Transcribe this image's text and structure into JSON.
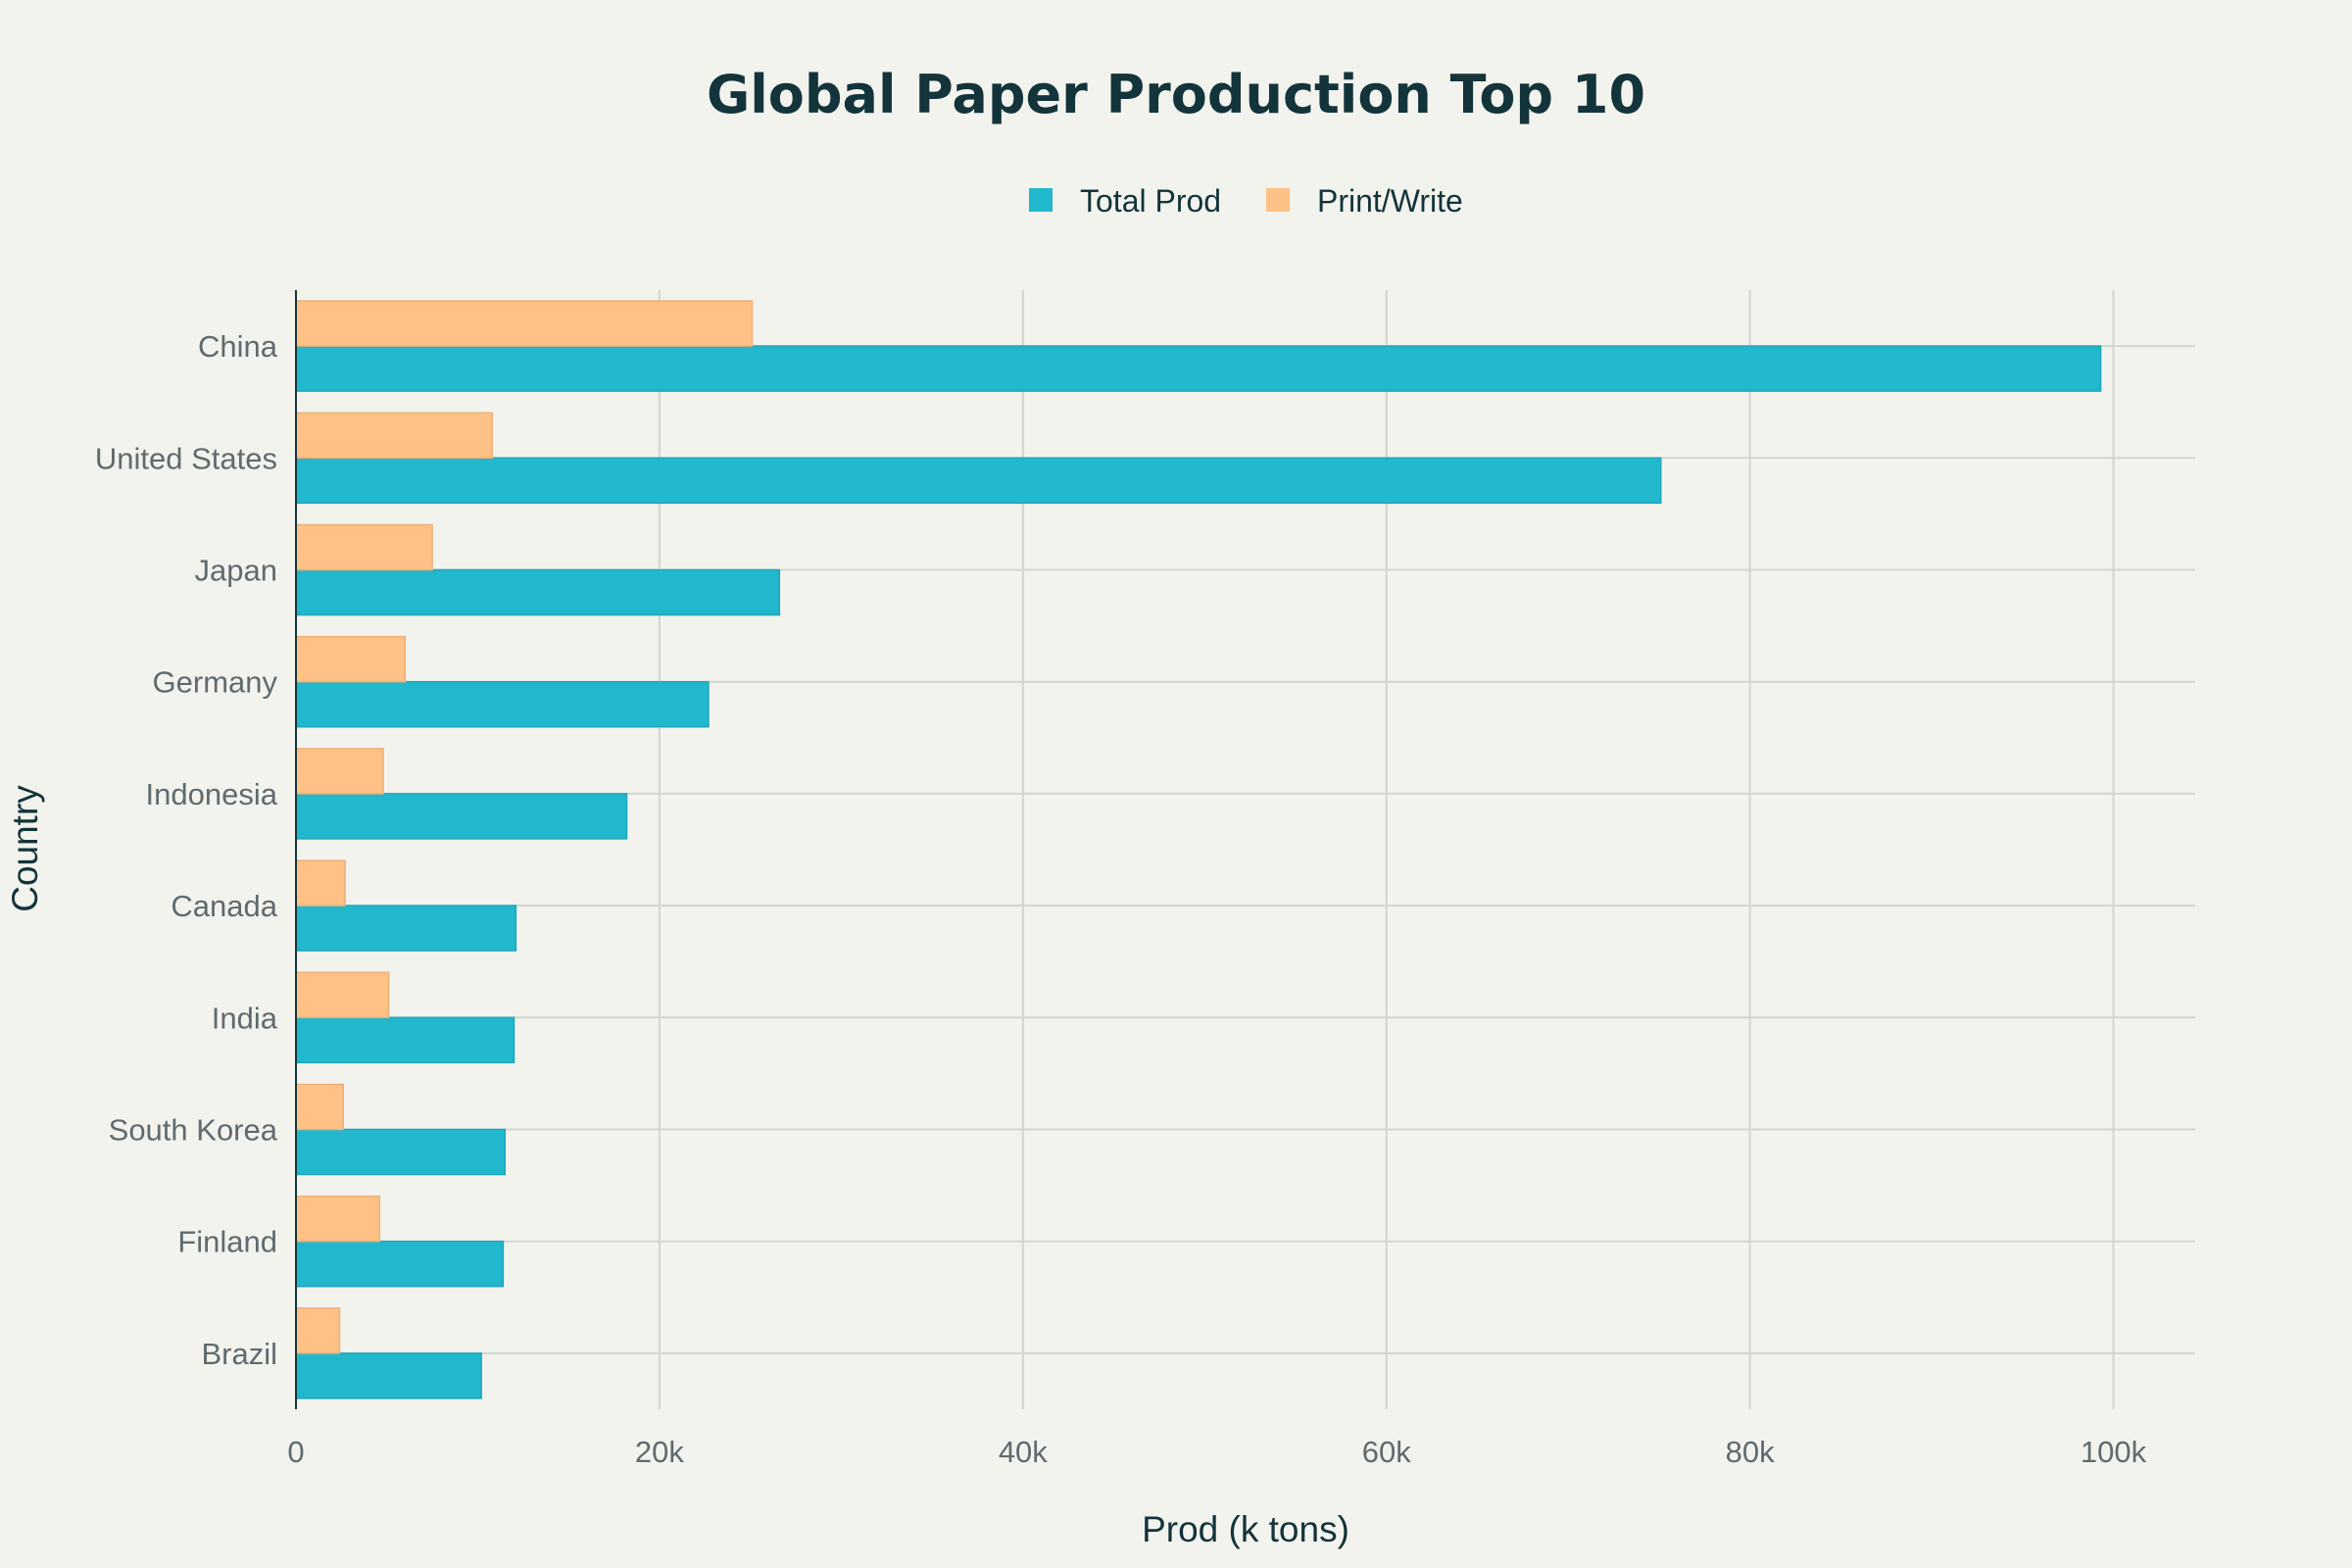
{
  "chart_data": {
    "type": "bar",
    "orientation": "horizontal",
    "title": "Global Paper Production Top 10",
    "xlabel": "Prod (k tons)",
    "ylabel": "Country",
    "xlim": [
      0,
      104500
    ],
    "x_ticks": [
      {
        "value": 0,
        "label": "0"
      },
      {
        "value": 20000,
        "label": "20k"
      },
      {
        "value": 40000,
        "label": "40k"
      },
      {
        "value": 60000,
        "label": "60k"
      },
      {
        "value": 80000,
        "label": "80k"
      },
      {
        "value": 100000,
        "label": "100k"
      }
    ],
    "categories": [
      "China",
      "United States",
      "Japan",
      "Germany",
      "Indonesia",
      "Canada",
      "India",
      "South Korea",
      "Finland",
      "Brazil"
    ],
    "series": [
      {
        "name": "Total Prod",
        "color": "#21b8cd",
        "values": [
          99300,
          75100,
          26600,
          22700,
          18200,
          12100,
          12000,
          11500,
          11400,
          10200
        ]
      },
      {
        "name": "Print/Write",
        "color": "#ffc185",
        "values": [
          25100,
          10800,
          7500,
          6000,
          4800,
          2700,
          5100,
          2600,
          4600,
          2400
        ]
      }
    ],
    "grid": true,
    "legend_position": "top-center"
  }
}
